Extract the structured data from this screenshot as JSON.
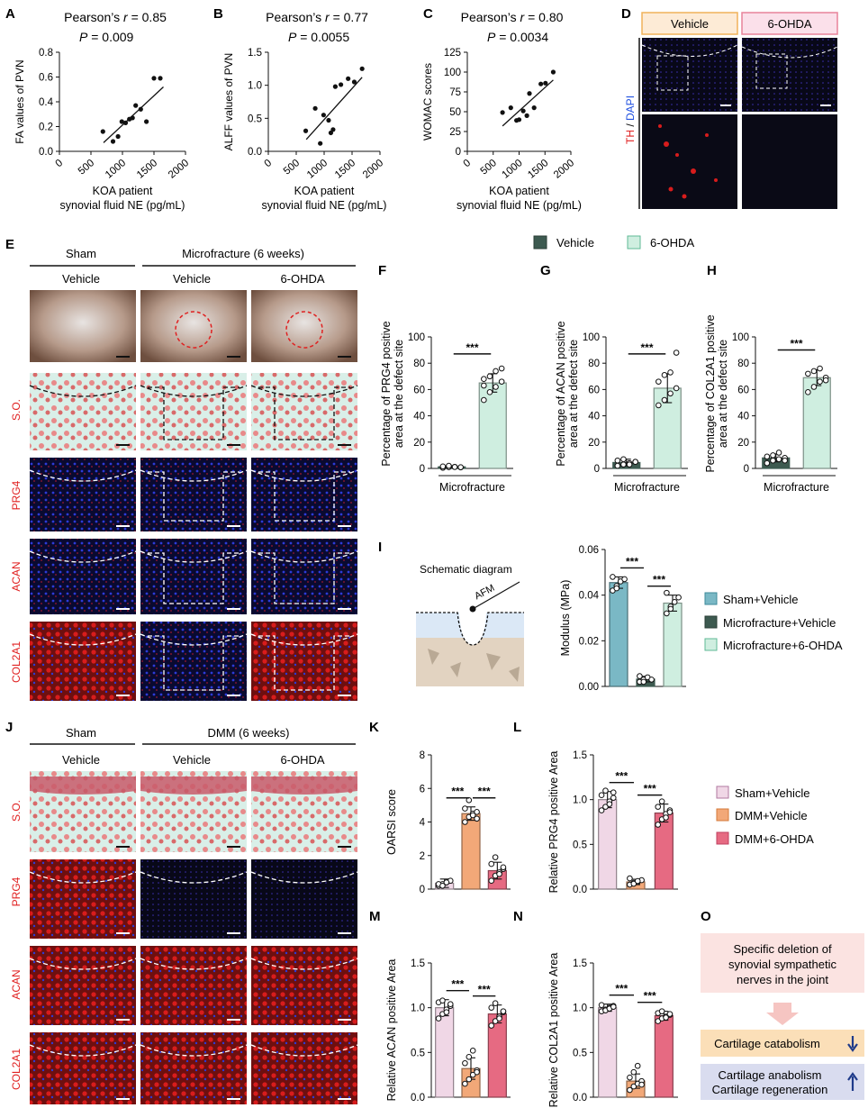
{
  "panel_letters": [
    "A",
    "B",
    "C",
    "D",
    "E",
    "F",
    "G",
    "H",
    "I",
    "J",
    "K",
    "L",
    "M",
    "N",
    "O"
  ],
  "d_panel": {
    "headers": [
      "Vehicle",
      "6-OHDA"
    ],
    "stain_label_th": "TH",
    "stain_label_sep": " / ",
    "stain_label_dapi": "DAPI",
    "colors": {
      "vehicle_header_border": "#f0b25a",
      "ohda_header_border": "#e8839a",
      "th": "#e02020",
      "dapi": "#2050e0"
    }
  },
  "e_panel": {
    "group_sham": "Sham",
    "group_mf": "Microfracture (6 weeks)",
    "col_labels": [
      "Vehicle",
      "Vehicle",
      "6-OHDA"
    ],
    "row_labels": [
      "S.O.",
      "PRG4",
      "ACAN",
      "COL2A1"
    ]
  },
  "legend_fgh": {
    "items": [
      {
        "label": "Vehicle",
        "color": "#3d5a50"
      },
      {
        "label": "6-OHDA",
        "color": "#cfeee0"
      }
    ]
  },
  "i_panel": {
    "schematic_title": "Schematic diagram",
    "afm_label": "AFM"
  },
  "legend_i": {
    "items": [
      {
        "label": "Sham+Vehicle",
        "color": "#7ab8c5"
      },
      {
        "label": "Microfracture+Vehicle",
        "color": "#3d5a50"
      },
      {
        "label": "Microfracture+6-OHDA",
        "color": "#cfeee0"
      }
    ]
  },
  "j_panel": {
    "group_sham": "Sham",
    "group_dmm": "DMM (6 weeks)",
    "col_labels": [
      "Vehicle",
      "Vehicle",
      "6-OHDA"
    ],
    "row_labels": [
      "S.O.",
      "PRG4",
      "ACAN",
      "COL2A1"
    ]
  },
  "legend_klmn": {
    "items": [
      {
        "label": "Sham+Vehicle",
        "color": "#f0d7e6"
      },
      {
        "label": "DMM+Vehicle",
        "color": "#f2a878"
      },
      {
        "label": "DMM+6-OHDA",
        "color": "#e66a82"
      }
    ]
  },
  "o_panel": {
    "top_box": "Specific deletion of synovial sympathetic nerves in the joint",
    "catabolism": "Cartilage catabolism",
    "anabolism_line1": "Cartilage anabolism",
    "anabolism_line2": "Cartilage regeneration"
  },
  "chart_data": [
    {
      "id": "A",
      "type": "scatter",
      "title_line1": "Pearson’s r = 0.85",
      "title_line2": "P = 0.009",
      "ylabel": "FA values of PVN",
      "xlabel_line1": "KOA patient",
      "xlabel_line2": "synovial fluid NE (pg/mL)",
      "xlim": [
        0,
        2000
      ],
      "ylim": [
        0.0,
        0.8
      ],
      "xticks": [
        0,
        500,
        1000,
        1500,
        2000
      ],
      "xtick_labels": [
        "0",
        "500",
        "1000",
        "1500",
        "2000"
      ],
      "yticks": [
        0.0,
        0.2,
        0.4,
        0.6,
        0.8
      ],
      "ytick_labels": [
        "0.0",
        "0.2",
        "0.4",
        "0.6",
        "0.8"
      ],
      "x": [
        690,
        850,
        930,
        990,
        1050,
        1110,
        1160,
        1210,
        1290,
        1380,
        1500,
        1600
      ],
      "y": [
        0.16,
        0.08,
        0.12,
        0.24,
        0.23,
        0.26,
        0.27,
        0.37,
        0.34,
        0.24,
        0.59,
        0.59
      ],
      "fit": [
        [
          700,
          0.07
        ],
        [
          1650,
          0.52
        ]
      ]
    },
    {
      "id": "B",
      "type": "scatter",
      "title_line1": "Pearson’s r = 0.77",
      "title_line2": "P = 0.0055",
      "ylabel": "ALFF values of PVN",
      "xlabel_line1": "KOA patient",
      "xlabel_line2": "synovial fluid NE (pg/mL)",
      "xlim": [
        0,
        2000
      ],
      "ylim": [
        0.0,
        1.5
      ],
      "xticks": [
        0,
        500,
        1000,
        1500,
        2000
      ],
      "xtick_labels": [
        "0",
        "500",
        "1000",
        "1500",
        "2000"
      ],
      "yticks": [
        0.0,
        0.5,
        1.0,
        1.5
      ],
      "ytick_labels": [
        "0.0",
        "0.5",
        "1.0",
        "1.5"
      ],
      "x": [
        670,
        840,
        930,
        990,
        1080,
        1120,
        1160,
        1200,
        1300,
        1430,
        1540,
        1680
      ],
      "y": [
        0.31,
        0.65,
        0.12,
        0.55,
        0.47,
        0.28,
        0.33,
        0.98,
        1.01,
        1.1,
        1.05,
        1.25
      ],
      "fit": [
        [
          680,
          0.18
        ],
        [
          1680,
          1.12
        ]
      ]
    },
    {
      "id": "C",
      "type": "scatter",
      "title_line1": "Pearson’s r = 0.80",
      "title_line2": "P = 0.0034",
      "ylabel": "WOMAC scores",
      "xlabel_line1": "KOA patient",
      "xlabel_line2": "synovial fluid NE (pg/mL)",
      "xlim": [
        0,
        2000
      ],
      "ylim": [
        0,
        125
      ],
      "xticks": [
        0,
        500,
        1000,
        1500,
        2000
      ],
      "xtick_labels": [
        "0",
        "500",
        "1000",
        "1500",
        "2000"
      ],
      "yticks": [
        0,
        25,
        50,
        75,
        100,
        125
      ],
      "ytick_labels": [
        "0",
        "25",
        "50",
        "75",
        "100",
        "125"
      ],
      "x": [
        680,
        840,
        950,
        1000,
        1080,
        1150,
        1200,
        1290,
        1420,
        1510,
        1660
      ],
      "y": [
        49,
        55,
        39,
        40,
        51,
        45,
        73,
        55,
        85,
        86,
        100
      ],
      "fit": [
        [
          680,
          32
        ],
        [
          1660,
          90
        ]
      ]
    },
    {
      "id": "F",
      "type": "bar",
      "ylabel_line1": "Percentage of PRG4 positive",
      "ylabel_line2": "area at the defect site",
      "xlabel": "Microfracture",
      "ylim": [
        0,
        100
      ],
      "yticks": [
        0,
        20,
        40,
        60,
        80,
        100
      ],
      "ytick_labels": [
        "0",
        "20",
        "40",
        "60",
        "80",
        "100"
      ],
      "series": [
        {
          "name": "Vehicle",
          "value": 1.2,
          "err": 0.8,
          "color": "#3d5a50",
          "points": [
            0.5,
            1.0,
            1.2,
            0.8,
            1.5,
            2.0,
            1.1,
            0.9
          ]
        },
        {
          "name": "6-OHDA",
          "value": 65,
          "err": 7,
          "color": "#cfeee0",
          "points": [
            52,
            58,
            62,
            66,
            68,
            70,
            74,
            76,
            63
          ]
        }
      ],
      "sig": [
        {
          "a": 0,
          "b": 1,
          "label": "***"
        }
      ]
    },
    {
      "id": "G",
      "type": "bar",
      "ylabel_line1": "Percentage of ACAN positive",
      "ylabel_line2": "area at the defect site",
      "xlabel": "Microfracture",
      "ylim": [
        0,
        100
      ],
      "yticks": [
        0,
        20,
        40,
        60,
        80,
        100
      ],
      "ytick_labels": [
        "0",
        "20",
        "40",
        "60",
        "80",
        "100"
      ],
      "series": [
        {
          "name": "Vehicle",
          "value": 4.5,
          "err": 2.5,
          "color": "#3d5a50",
          "points": [
            2,
            3,
            4,
            5,
            6,
            7,
            3,
            5
          ]
        },
        {
          "name": "6-OHDA",
          "value": 61,
          "err": 11,
          "color": "#cfeee0",
          "points": [
            48,
            52,
            57,
            61,
            66,
            71,
            73,
            88
          ]
        }
      ],
      "sig": [
        {
          "a": 0,
          "b": 1,
          "label": "***"
        }
      ]
    },
    {
      "id": "H",
      "type": "bar",
      "ylabel_line1": "Percentage of COL2A1 positive",
      "ylabel_line2": "area at the defect site",
      "xlabel": "Microfracture",
      "ylim": [
        0,
        100
      ],
      "yticks": [
        0,
        20,
        40,
        60,
        80,
        100
      ],
      "ytick_labels": [
        "0",
        "20",
        "40",
        "60",
        "80",
        "100"
      ],
      "series": [
        {
          "name": "Vehicle",
          "value": 8,
          "err": 3,
          "color": "#3d5a50",
          "points": [
            4,
            6,
            7,
            8,
            9,
            10,
            12,
            6
          ]
        },
        {
          "name": "6-OHDA",
          "value": 69,
          "err": 6,
          "color": "#cfeee0",
          "points": [
            58,
            62,
            66,
            69,
            72,
            74,
            76,
            67
          ]
        }
      ],
      "sig": [
        {
          "a": 0,
          "b": 1,
          "label": "***"
        }
      ]
    },
    {
      "id": "I",
      "type": "bar",
      "ylabel": "Modulus (MPa)",
      "ylim": [
        0,
        0.06
      ],
      "yticks": [
        0,
        0.02,
        0.04,
        0.06
      ],
      "ytick_labels": [
        "0.00",
        "0.02",
        "0.04",
        "0.06"
      ],
      "series": [
        {
          "name": "Sham+Vehicle",
          "value": 0.0455,
          "err": 0.0025,
          "color": "#7ab8c5",
          "points": [
            0.042,
            0.044,
            0.046,
            0.047,
            0.048,
            0.043
          ]
        },
        {
          "name": "Microfracture+Vehicle",
          "value": 0.0032,
          "err": 0.0012,
          "color": "#3d5a50",
          "points": [
            0.002,
            0.003,
            0.004,
            0.003,
            0.0045,
            0.002
          ]
        },
        {
          "name": "Microfracture+6-OHDA",
          "value": 0.0365,
          "err": 0.0035,
          "color": "#cfeee0",
          "points": [
            0.032,
            0.035,
            0.037,
            0.039,
            0.041,
            0.034
          ]
        }
      ],
      "sig": [
        {
          "a": 0,
          "b": 1,
          "label": "***"
        },
        {
          "a": 1,
          "b": 2,
          "label": "***"
        }
      ]
    },
    {
      "id": "K",
      "type": "bar",
      "ylabel": "OARSI score",
      "ylim": [
        0,
        8
      ],
      "yticks": [
        0,
        2,
        4,
        6,
        8
      ],
      "ytick_labels": [
        "0",
        "2",
        "4",
        "6",
        "8"
      ],
      "series": [
        {
          "name": "Sham+Vehicle",
          "value": 0.35,
          "err": 0.25,
          "color": "#f0d7e6",
          "points": [
            0.2,
            0.3,
            0.4,
            0.5,
            0.3,
            0.2,
            0.4
          ]
        },
        {
          "name": "DMM+Vehicle",
          "value": 4.5,
          "err": 0.4,
          "color": "#f2a878",
          "points": [
            4.0,
            4.3,
            4.5,
            4.6,
            4.8,
            5.3,
            4.4,
            4.2
          ]
        },
        {
          "name": "DMM+6-OHDA",
          "value": 1.1,
          "err": 0.5,
          "color": "#e66a82",
          "points": [
            0.5,
            0.8,
            1.0,
            1.2,
            1.5,
            1.9,
            0.9,
            1.3
          ]
        }
      ],
      "sig": [
        {
          "a": 0,
          "b": 1,
          "label": "***"
        },
        {
          "a": 1,
          "b": 2,
          "label": "***"
        }
      ]
    },
    {
      "id": "L",
      "type": "bar",
      "ylabel": "Relative PRG4 positive Area",
      "ylim": [
        0,
        1.5
      ],
      "yticks": [
        0,
        0.5,
        1.0,
        1.5
      ],
      "ytick_labels": [
        "0.0",
        "0.5",
        "1.0",
        "1.5"
      ],
      "series": [
        {
          "name": "Sham+Vehicle",
          "value": 1.0,
          "err": 0.09,
          "color": "#f0d7e6",
          "points": [
            0.88,
            0.92,
            0.98,
            1.02,
            1.05,
            1.1,
            0.95,
            1.08
          ]
        },
        {
          "name": "DMM+Vehicle",
          "value": 0.08,
          "err": 0.03,
          "color": "#f2a878",
          "points": [
            0.05,
            0.07,
            0.08,
            0.1,
            0.12,
            0.06,
            0.09
          ]
        },
        {
          "name": "DMM+6-OHDA",
          "value": 0.85,
          "err": 0.1,
          "color": "#e66a82",
          "points": [
            0.72,
            0.78,
            0.84,
            0.88,
            0.92,
            0.98,
            0.8,
            0.86
          ]
        }
      ],
      "sig": [
        {
          "a": 0,
          "b": 1,
          "label": "***"
        },
        {
          "a": 1,
          "b": 2,
          "label": "***"
        }
      ]
    },
    {
      "id": "M",
      "type": "bar",
      "ylabel": "Relative ACAN positive Area",
      "ylim": [
        0,
        1.5
      ],
      "yticks": [
        0,
        0.5,
        1.0,
        1.5
      ],
      "ytick_labels": [
        "0.0",
        "0.5",
        "1.0",
        "1.5"
      ],
      "series": [
        {
          "name": "Sham+Vehicle",
          "value": 1.0,
          "err": 0.09,
          "color": "#f0d7e6",
          "points": [
            0.88,
            0.93,
            0.98,
            1.02,
            1.06,
            1.08,
            0.95,
            1.04
          ]
        },
        {
          "name": "DMM+Vehicle",
          "value": 0.32,
          "err": 0.12,
          "color": "#f2a878",
          "points": [
            0.15,
            0.2,
            0.25,
            0.3,
            0.38,
            0.45,
            0.52,
            0.28
          ]
        },
        {
          "name": "DMM+6-OHDA",
          "value": 0.93,
          "err": 0.1,
          "color": "#e66a82",
          "points": [
            0.8,
            0.85,
            0.9,
            0.95,
            1.0,
            1.05,
            0.88,
            0.96
          ]
        }
      ],
      "sig": [
        {
          "a": 0,
          "b": 1,
          "label": "***"
        },
        {
          "a": 1,
          "b": 2,
          "label": "***"
        }
      ]
    },
    {
      "id": "N",
      "type": "bar",
      "ylabel": "Relative COL2A1 positive Area",
      "ylim": [
        0,
        1.5
      ],
      "yticks": [
        0,
        0.5,
        1.0,
        1.5
      ],
      "ytick_labels": [
        "0.0",
        "0.5",
        "1.0",
        "1.5"
      ],
      "series": [
        {
          "name": "Sham+Vehicle",
          "value": 1.0,
          "err": 0.04,
          "color": "#f0d7e6",
          "points": [
            0.96,
            0.98,
            1.0,
            1.02,
            1.03,
            0.97,
            0.99,
            1.01
          ]
        },
        {
          "name": "DMM+Vehicle",
          "value": 0.18,
          "err": 0.08,
          "color": "#f2a878",
          "points": [
            0.08,
            0.12,
            0.15,
            0.18,
            0.22,
            0.28,
            0.35,
            0.14
          ]
        },
        {
          "name": "DMM+6-OHDA",
          "value": 0.91,
          "err": 0.05,
          "color": "#e66a82",
          "points": [
            0.85,
            0.88,
            0.9,
            0.92,
            0.94,
            0.96,
            0.89,
            0.93
          ]
        }
      ],
      "sig": [
        {
          "a": 0,
          "b": 1,
          "label": "***"
        },
        {
          "a": 1,
          "b": 2,
          "label": "***"
        }
      ]
    }
  ]
}
